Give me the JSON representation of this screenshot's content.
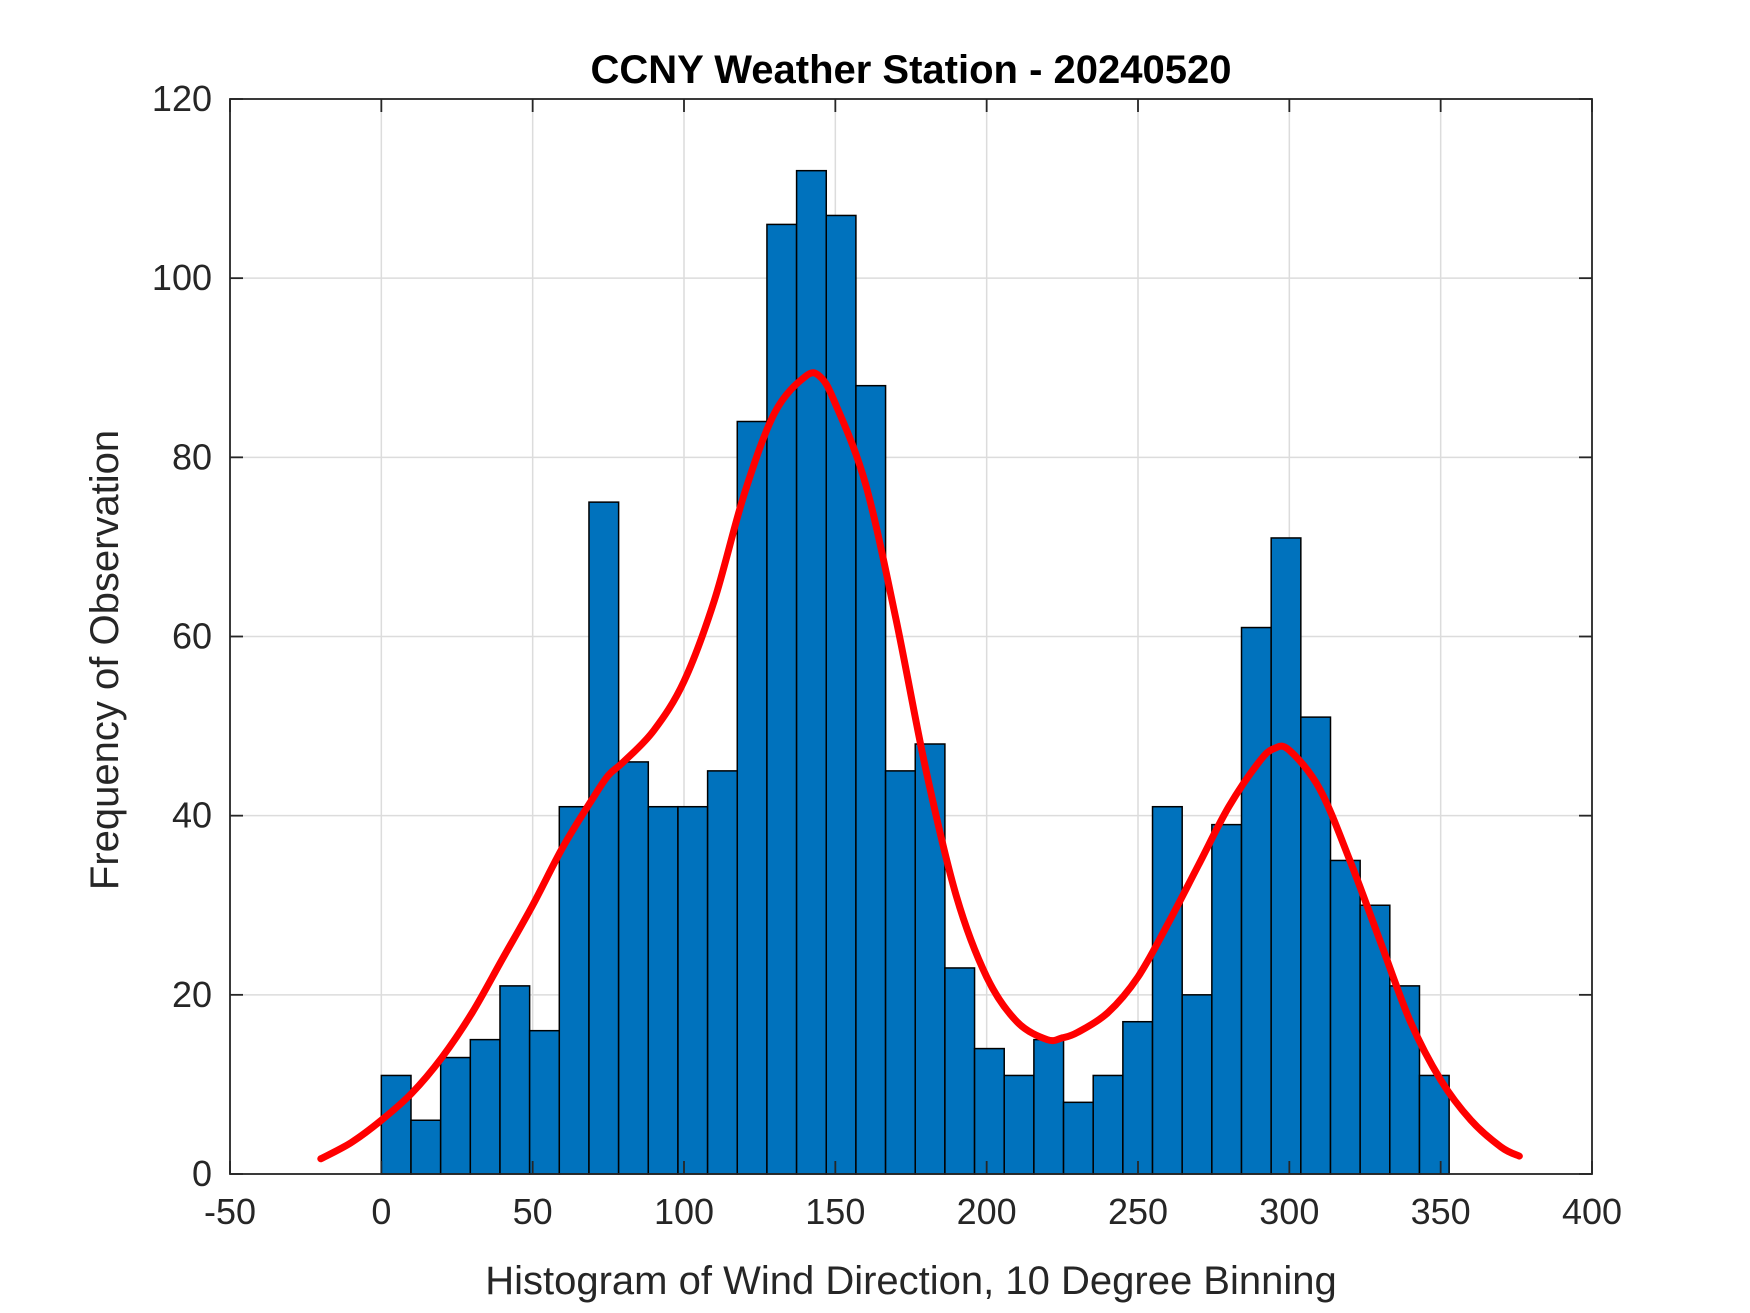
{
  "chart_data": {
    "type": "bar",
    "title": "CCNY Weather Station - 20240520",
    "xlabel": "Histogram of Wind Direction, 10 Degree Binning",
    "ylabel": "Frequency of Observation",
    "xlim": [
      -50,
      400
    ],
    "ylim": [
      0,
      120
    ],
    "xticks": [
      -50,
      0,
      50,
      100,
      150,
      200,
      250,
      300,
      350,
      400
    ],
    "yticks": [
      0,
      20,
      40,
      60,
      80,
      100,
      120
    ],
    "grid": true,
    "bin_width": 9.8,
    "bin_start": 0,
    "bins": [
      {
        "x0": 0.0,
        "value": 11
      },
      {
        "x0": 9.8,
        "value": 6
      },
      {
        "x0": 19.6,
        "value": 13
      },
      {
        "x0": 29.4,
        "value": 15
      },
      {
        "x0": 39.2,
        "value": 21
      },
      {
        "x0": 49.0,
        "value": 16
      },
      {
        "x0": 58.8,
        "value": 41
      },
      {
        "x0": 68.6,
        "value": 75
      },
      {
        "x0": 78.4,
        "value": 46
      },
      {
        "x0": 88.2,
        "value": 41
      },
      {
        "x0": 98.0,
        "value": 41
      },
      {
        "x0": 107.8,
        "value": 45
      },
      {
        "x0": 117.6,
        "value": 84
      },
      {
        "x0": 127.4,
        "value": 106
      },
      {
        "x0": 137.2,
        "value": 112
      },
      {
        "x0": 147.0,
        "value": 107
      },
      {
        "x0": 156.8,
        "value": 88
      },
      {
        "x0": 166.6,
        "value": 45
      },
      {
        "x0": 176.4,
        "value": 48
      },
      {
        "x0": 186.2,
        "value": 23
      },
      {
        "x0": 196.0,
        "value": 14
      },
      {
        "x0": 205.8,
        "value": 11
      },
      {
        "x0": 215.6,
        "value": 15
      },
      {
        "x0": 225.4,
        "value": 8
      },
      {
        "x0": 235.2,
        "value": 11
      },
      {
        "x0": 245.0,
        "value": 17
      },
      {
        "x0": 254.8,
        "value": 41
      },
      {
        "x0": 264.6,
        "value": 20
      },
      {
        "x0": 274.4,
        "value": 39
      },
      {
        "x0": 284.2,
        "value": 61
      },
      {
        "x0": 294.0,
        "value": 71
      },
      {
        "x0": 303.8,
        "value": 51
      },
      {
        "x0": 313.6,
        "value": 35
      },
      {
        "x0": 323.4,
        "value": 30
      },
      {
        "x0": 333.2,
        "value": 21
      },
      {
        "x0": 343.0,
        "value": 11
      }
    ],
    "series": [
      {
        "name": "fit",
        "type": "line",
        "color": "#ff0000",
        "x": [
          -20,
          -10,
          0,
          10,
          20,
          30,
          40,
          50,
          60,
          70,
          75,
          80,
          90,
          100,
          110,
          120,
          130,
          140,
          145,
          150,
          160,
          170,
          180,
          190,
          200,
          210,
          220,
          225,
          230,
          240,
          250,
          260,
          270,
          280,
          290,
          295,
          300,
          310,
          320,
          330,
          340,
          350,
          360,
          370,
          376
        ],
        "y": [
          1.7,
          3.5,
          6,
          9,
          13,
          18,
          24,
          30,
          36.5,
          42,
          44.5,
          46,
          49.5,
          55,
          64,
          76,
          85,
          89,
          89,
          86,
          77,
          62,
          45,
          31,
          22,
          17,
          15,
          15.2,
          15.8,
          18,
          22,
          28,
          34.5,
          41,
          46,
          47.5,
          47.3,
          43,
          35,
          26,
          17,
          10.5,
          6,
          3,
          2
        ]
      }
    ],
    "colors": {
      "bar_fill": "#0072bd",
      "bar_edge": "#000000",
      "fit_line": "#ff0000",
      "grid": "#dcdcdc",
      "axes": "#262626"
    }
  }
}
